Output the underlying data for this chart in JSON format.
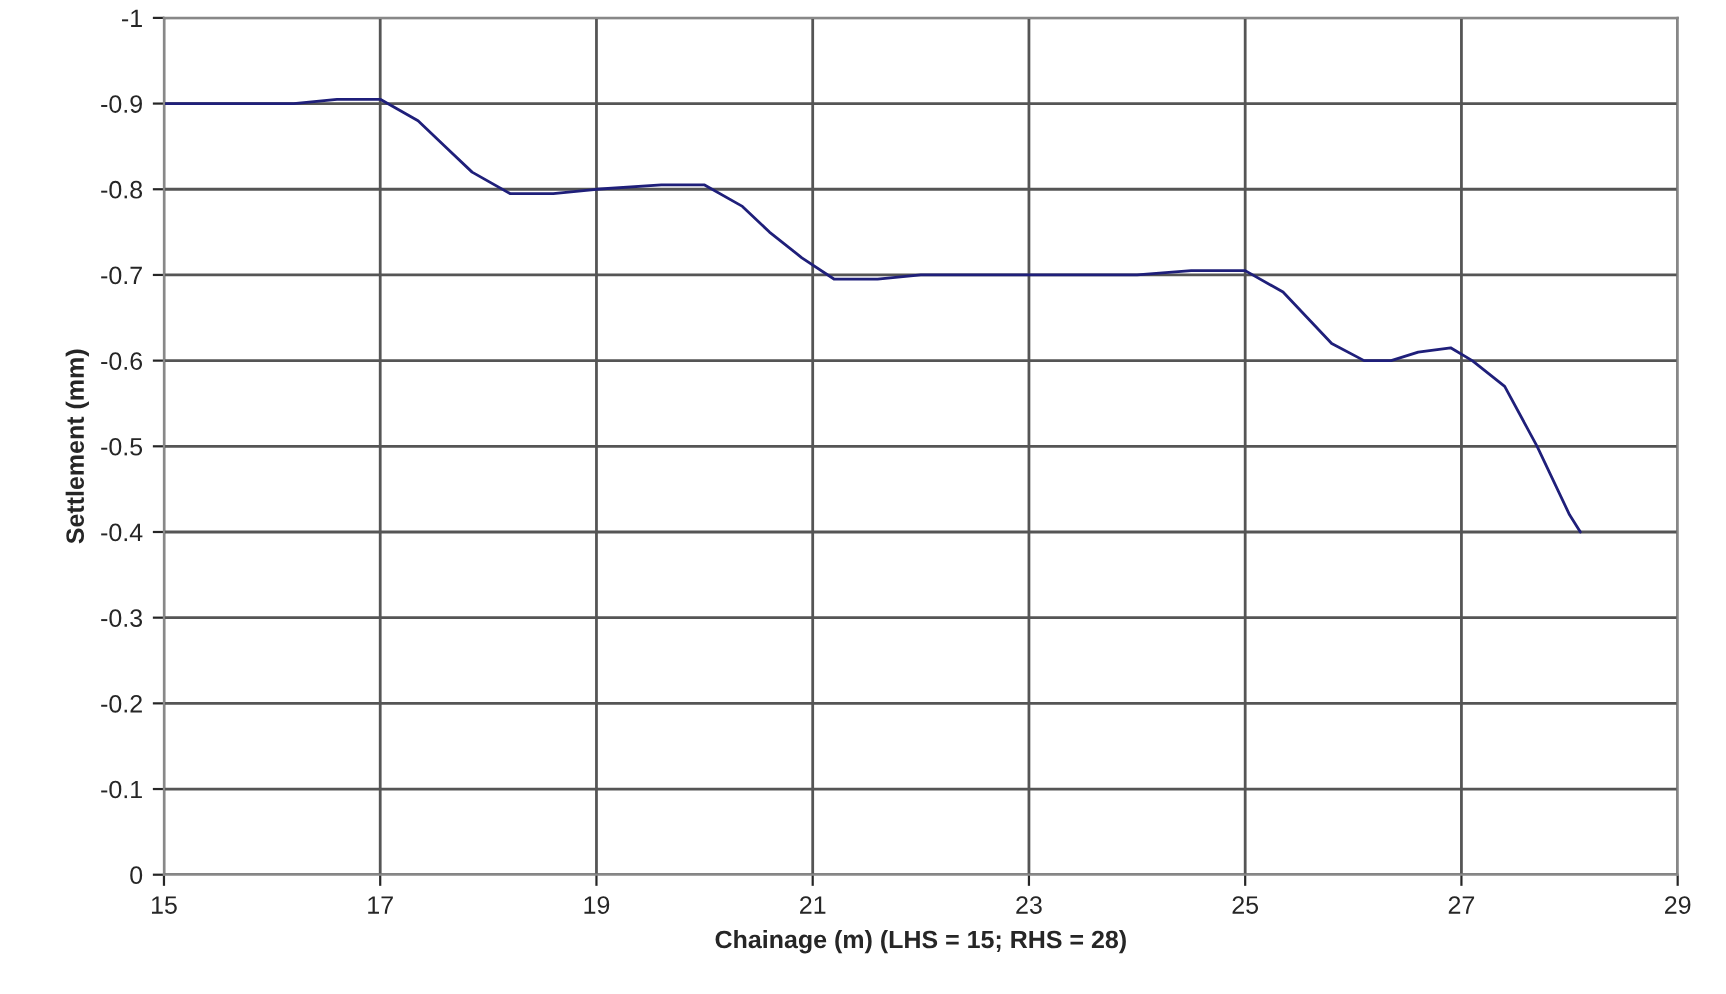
{
  "chart_data": {
    "type": "line",
    "xlabel": "Chainage (m) (LHS = 15; RHS = 28)",
    "ylabel": "Settlement (mm)",
    "xlim": [
      15,
      29
    ],
    "xticks": [
      15,
      17,
      19,
      21,
      23,
      25,
      27,
      29
    ],
    "ylim": [
      0,
      -1
    ],
    "yticks": [
      0,
      -0.1,
      -0.2,
      -0.3,
      -0.4,
      -0.5,
      -0.6,
      -0.7,
      -0.8,
      -0.9,
      -1
    ],
    "grid": true,
    "legend": false,
    "marker": "none",
    "line_style": "solid",
    "series": [
      {
        "color": "#1f1f7a",
        "x": [
          15,
          16.2,
          16.6,
          17,
          17.35,
          17.6,
          17.85,
          18.2,
          18.6,
          19,
          19.6,
          20,
          20.35,
          20.6,
          20.9,
          21.2,
          21.6,
          22,
          24,
          24.5,
          25,
          25.35,
          25.8,
          26.1,
          26.35,
          26.6,
          26.9,
          27.1,
          27.4,
          27.7,
          28.0,
          28.1
        ],
        "values": [
          -0.9,
          -0.9,
          -0.905,
          -0.905,
          -0.88,
          -0.85,
          -0.82,
          -0.795,
          -0.795,
          -0.8,
          -0.805,
          -0.805,
          -0.78,
          -0.75,
          -0.72,
          -0.695,
          -0.695,
          -0.7,
          -0.7,
          -0.705,
          -0.705,
          -0.68,
          -0.62,
          -0.6,
          -0.6,
          -0.61,
          -0.615,
          -0.6,
          -0.57,
          -0.5,
          -0.42,
          -0.4
        ]
      }
    ]
  }
}
